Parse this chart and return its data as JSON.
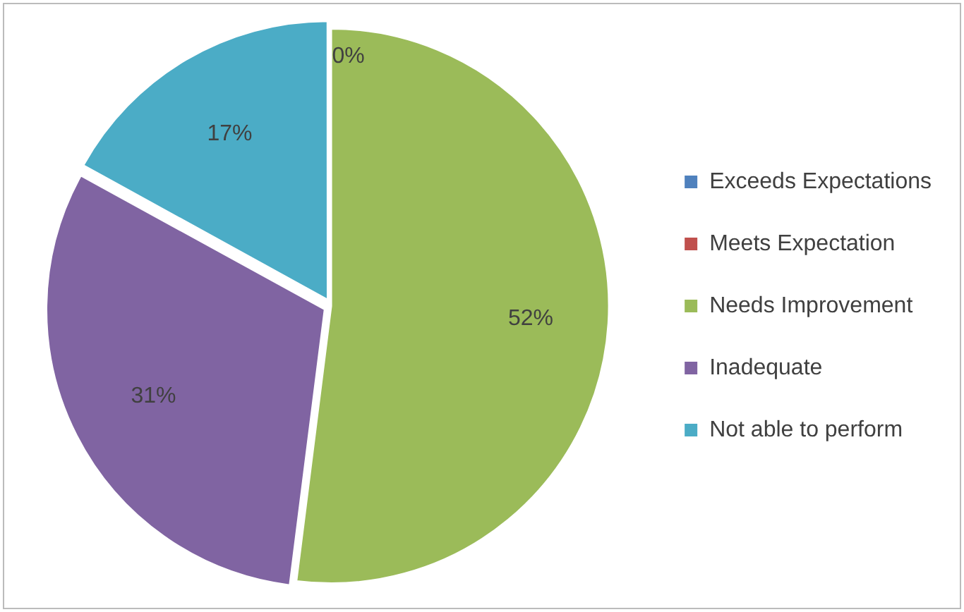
{
  "chart_data": {
    "type": "pie",
    "categories": [
      "Exceeds Expectations",
      "Meets Expectation",
      "Needs Improvement",
      "Inadequate",
      "Not able to perform"
    ],
    "values": [
      0,
      0,
      52,
      31,
      17
    ],
    "colors": [
      "#4f81bd",
      "#c0504d",
      "#9bbb59",
      "#8064a2",
      "#4bacc6"
    ],
    "value_labels": [
      "0%",
      null,
      "52%",
      "31%",
      "17%"
    ],
    "legend": "right"
  }
}
